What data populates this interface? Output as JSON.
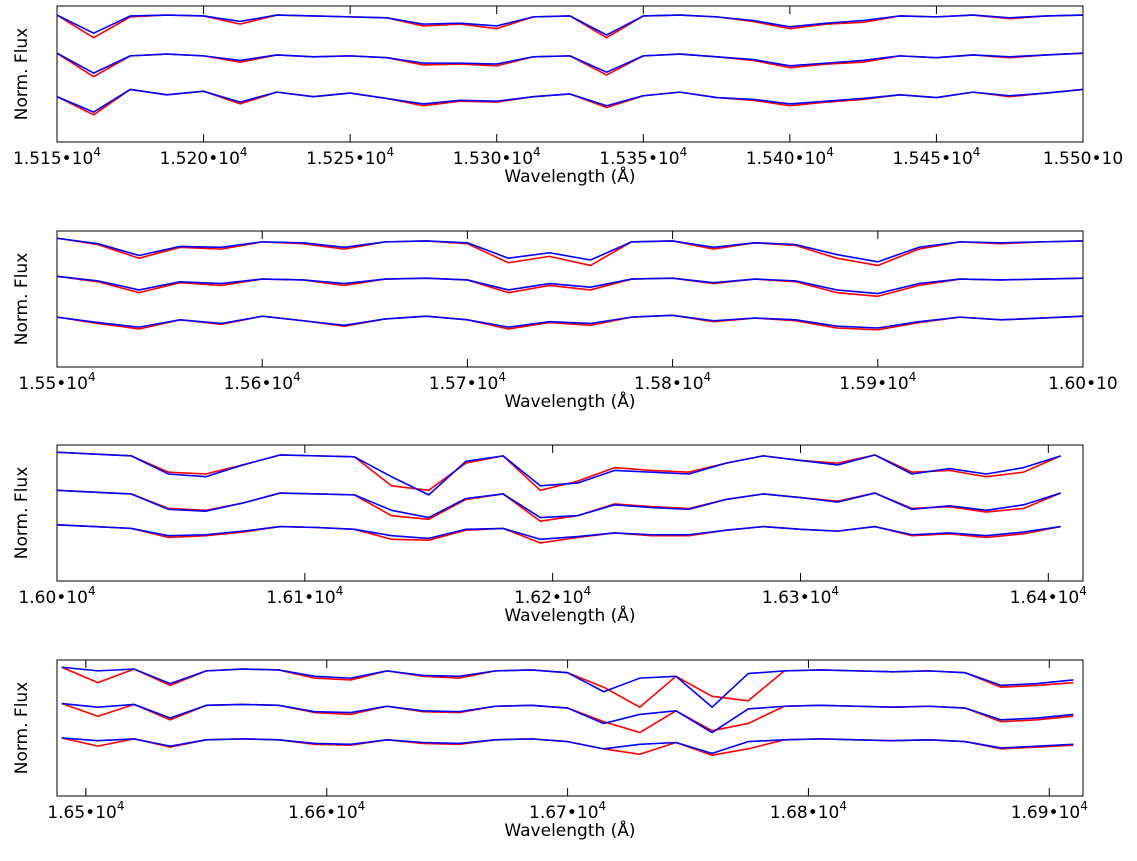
{
  "chart_data": [
    {
      "type": "line",
      "xlabel": "Wavelength (Å)",
      "ylabel": "Norm. Flux",
      "xlim": [
        15150,
        15500
      ],
      "ylim": [
        0,
        1.5
      ],
      "xticks": [
        {
          "value": 15150,
          "label": "1.515•10",
          "exponent": "4"
        },
        {
          "value": 15200,
          "label": "1.520•10",
          "exponent": "4"
        },
        {
          "value": 15250,
          "label": "1.525•10",
          "exponent": "4"
        },
        {
          "value": 15300,
          "label": "1.530•10",
          "exponent": "4"
        },
        {
          "value": 15350,
          "label": "1.535•10",
          "exponent": "4"
        },
        {
          "value": 15400,
          "label": "1.540•10",
          "exponent": "4"
        },
        {
          "value": 15450,
          "label": "1.545•10",
          "exponent": "4"
        },
        {
          "value": 15500,
          "label": "1.550•10"
        }
      ],
      "x": [
        15150,
        15162.5,
        15175,
        15187.5,
        15200,
        15212.5,
        15225,
        15237.5,
        15250,
        15262.5,
        15275,
        15287.5,
        15300,
        15312.5,
        15325,
        15337.5,
        15350,
        15362.5,
        15375,
        15387.5,
        15400,
        15412.5,
        15425,
        15437.5,
        15450,
        15462.5,
        15475,
        15487.5,
        15500
      ],
      "series": [
        {
          "color": "#ff0000",
          "values": [
            1.4,
            1.15,
            1.38,
            1.4,
            1.39,
            1.3,
            1.4,
            1.39,
            1.38,
            1.37,
            1.28,
            1.3,
            1.25,
            1.38,
            1.39,
            1.15,
            1.39,
            1.4,
            1.38,
            1.33,
            1.25,
            1.3,
            1.32,
            1.39,
            1.38,
            1.4,
            1.36,
            1.39,
            1.4
          ]
        },
        {
          "color": "#0000ff",
          "values": [
            1.4,
            1.2,
            1.39,
            1.4,
            1.39,
            1.33,
            1.4,
            1.39,
            1.38,
            1.37,
            1.3,
            1.31,
            1.28,
            1.38,
            1.39,
            1.18,
            1.39,
            1.4,
            1.38,
            1.34,
            1.27,
            1.31,
            1.34,
            1.39,
            1.38,
            1.4,
            1.37,
            1.39,
            1.4
          ]
        },
        {
          "color": "#ff0000",
          "values": [
            0.98,
            0.72,
            0.95,
            0.97,
            0.95,
            0.88,
            0.96,
            0.94,
            0.95,
            0.93,
            0.85,
            0.86,
            0.84,
            0.94,
            0.95,
            0.74,
            0.95,
            0.97,
            0.94,
            0.9,
            0.82,
            0.86,
            0.88,
            0.95,
            0.93,
            0.96,
            0.93,
            0.96,
            0.98
          ]
        },
        {
          "color": "#0000ff",
          "values": [
            0.98,
            0.76,
            0.95,
            0.97,
            0.95,
            0.9,
            0.96,
            0.94,
            0.95,
            0.93,
            0.87,
            0.87,
            0.86,
            0.94,
            0.95,
            0.77,
            0.95,
            0.97,
            0.94,
            0.91,
            0.84,
            0.87,
            0.9,
            0.95,
            0.93,
            0.96,
            0.94,
            0.96,
            0.98
          ]
        },
        {
          "color": "#ff0000",
          "values": [
            0.5,
            0.3,
            0.58,
            0.52,
            0.56,
            0.42,
            0.55,
            0.5,
            0.54,
            0.48,
            0.4,
            0.45,
            0.44,
            0.5,
            0.53,
            0.38,
            0.51,
            0.55,
            0.49,
            0.46,
            0.4,
            0.44,
            0.47,
            0.52,
            0.49,
            0.55,
            0.5,
            0.54,
            0.58
          ]
        },
        {
          "color": "#0000ff",
          "values": [
            0.5,
            0.33,
            0.58,
            0.52,
            0.56,
            0.44,
            0.55,
            0.5,
            0.54,
            0.48,
            0.42,
            0.46,
            0.45,
            0.5,
            0.53,
            0.4,
            0.51,
            0.55,
            0.49,
            0.47,
            0.42,
            0.45,
            0.48,
            0.52,
            0.49,
            0.55,
            0.51,
            0.54,
            0.58
          ]
        }
      ]
    },
    {
      "type": "line",
      "xlabel": "Wavelength (Å)",
      "ylabel": "Norm. Flux",
      "xlim": [
        15500,
        16000
      ],
      "ylim": [
        0,
        1.5
      ],
      "xticks": [
        {
          "value": 15500,
          "label": "1.55•10",
          "exponent": "4"
        },
        {
          "value": 15600,
          "label": "1.56•10",
          "exponent": "4"
        },
        {
          "value": 15700,
          "label": "1.57•10",
          "exponent": "4"
        },
        {
          "value": 15800,
          "label": "1.58•10",
          "exponent": "4"
        },
        {
          "value": 15900,
          "label": "1.59•10",
          "exponent": "4"
        },
        {
          "value": 16000,
          "label": "1.60•10"
        }
      ],
      "x": [
        15500,
        15520,
        15540,
        15560,
        15580,
        15600,
        15620,
        15640,
        15660,
        15680,
        15700,
        15720,
        15740,
        15760,
        15780,
        15800,
        15820,
        15840,
        15860,
        15880,
        15900,
        15920,
        15940,
        15960,
        15980,
        16000
      ],
      "series": [
        {
          "color": "#ff0000",
          "values": [
            1.42,
            1.35,
            1.2,
            1.32,
            1.3,
            1.38,
            1.36,
            1.3,
            1.38,
            1.39,
            1.36,
            1.15,
            1.22,
            1.12,
            1.38,
            1.39,
            1.3,
            1.37,
            1.34,
            1.2,
            1.12,
            1.3,
            1.38,
            1.36,
            1.38,
            1.39
          ]
        },
        {
          "color": "#0000ff",
          "values": [
            1.42,
            1.36,
            1.23,
            1.33,
            1.32,
            1.38,
            1.37,
            1.32,
            1.38,
            1.39,
            1.37,
            1.2,
            1.26,
            1.18,
            1.38,
            1.39,
            1.32,
            1.37,
            1.35,
            1.24,
            1.16,
            1.32,
            1.38,
            1.37,
            1.38,
            1.39
          ]
        },
        {
          "color": "#ff0000",
          "values": [
            1.0,
            0.94,
            0.82,
            0.93,
            0.9,
            0.97,
            0.96,
            0.9,
            0.97,
            0.98,
            0.96,
            0.82,
            0.9,
            0.85,
            0.97,
            0.98,
            0.92,
            0.97,
            0.94,
            0.82,
            0.78,
            0.9,
            0.97,
            0.96,
            0.97,
            0.98
          ]
        },
        {
          "color": "#0000ff",
          "values": [
            1.0,
            0.95,
            0.85,
            0.94,
            0.92,
            0.97,
            0.96,
            0.92,
            0.97,
            0.98,
            0.96,
            0.85,
            0.92,
            0.88,
            0.97,
            0.98,
            0.93,
            0.97,
            0.95,
            0.85,
            0.81,
            0.92,
            0.97,
            0.96,
            0.97,
            0.98
          ]
        },
        {
          "color": "#ff0000",
          "values": [
            0.55,
            0.48,
            0.42,
            0.52,
            0.47,
            0.56,
            0.51,
            0.45,
            0.53,
            0.56,
            0.52,
            0.42,
            0.49,
            0.46,
            0.55,
            0.57,
            0.5,
            0.54,
            0.51,
            0.43,
            0.41,
            0.49,
            0.55,
            0.52,
            0.54,
            0.56
          ]
        },
        {
          "color": "#0000ff",
          "values": [
            0.55,
            0.49,
            0.44,
            0.52,
            0.48,
            0.56,
            0.51,
            0.46,
            0.53,
            0.56,
            0.52,
            0.44,
            0.5,
            0.48,
            0.55,
            0.57,
            0.51,
            0.54,
            0.52,
            0.45,
            0.43,
            0.5,
            0.55,
            0.52,
            0.54,
            0.56
          ]
        }
      ]
    },
    {
      "type": "line",
      "xlabel": "Wavelength (Å)",
      "ylabel": "Norm. Flux",
      "xlim": [
        16000,
        16414
      ],
      "ylim": [
        0,
        1.5
      ],
      "xticks": [
        {
          "value": 16000,
          "label": "1.60•10",
          "exponent": "4"
        },
        {
          "value": 16100,
          "label": "1.61•10",
          "exponent": "4"
        },
        {
          "value": 16200,
          "label": "1.62•10",
          "exponent": "4"
        },
        {
          "value": 16300,
          "label": "1.63•10",
          "exponent": "4"
        },
        {
          "value": 16400,
          "label": "1.64•10",
          "exponent": "4"
        }
      ],
      "x": [
        16000,
        16015,
        16030,
        16045,
        16060,
        16075,
        16090,
        16105,
        16120,
        16135,
        16150,
        16165,
        16180,
        16195,
        16210,
        16225,
        16240,
        16255,
        16270,
        16285,
        16300,
        16315,
        16330,
        16345,
        16360,
        16375,
        16390,
        16405
      ],
      "series": [
        {
          "color": "#ff0000",
          "values": [
            1.42,
            1.4,
            1.38,
            1.2,
            1.18,
            1.28,
            1.39,
            1.38,
            1.37,
            1.05,
            1.0,
            1.3,
            1.38,
            1.0,
            1.1,
            1.25,
            1.22,
            1.2,
            1.3,
            1.38,
            1.33,
            1.3,
            1.39,
            1.2,
            1.22,
            1.15,
            1.2,
            1.38
          ]
        },
        {
          "color": "#0000ff",
          "values": [
            1.42,
            1.4,
            1.38,
            1.18,
            1.15,
            1.28,
            1.39,
            1.38,
            1.37,
            1.15,
            0.95,
            1.32,
            1.38,
            1.05,
            1.08,
            1.22,
            1.2,
            1.18,
            1.3,
            1.38,
            1.33,
            1.28,
            1.39,
            1.18,
            1.24,
            1.18,
            1.25,
            1.38
          ]
        },
        {
          "color": "#ff0000",
          "values": [
            1.0,
            0.98,
            0.96,
            0.8,
            0.78,
            0.86,
            0.97,
            0.96,
            0.95,
            0.72,
            0.68,
            0.9,
            0.96,
            0.66,
            0.72,
            0.85,
            0.82,
            0.8,
            0.9,
            0.96,
            0.92,
            0.88,
            0.97,
            0.8,
            0.82,
            0.76,
            0.8,
            0.97
          ]
        },
        {
          "color": "#0000ff",
          "values": [
            1.0,
            0.98,
            0.96,
            0.79,
            0.77,
            0.86,
            0.97,
            0.96,
            0.95,
            0.78,
            0.7,
            0.91,
            0.96,
            0.7,
            0.72,
            0.84,
            0.81,
            0.79,
            0.9,
            0.96,
            0.92,
            0.87,
            0.97,
            0.79,
            0.83,
            0.78,
            0.84,
            0.97
          ]
        },
        {
          "color": "#ff0000",
          "values": [
            0.62,
            0.6,
            0.58,
            0.48,
            0.5,
            0.54,
            0.6,
            0.59,
            0.57,
            0.46,
            0.45,
            0.56,
            0.58,
            0.42,
            0.48,
            0.53,
            0.5,
            0.5,
            0.56,
            0.6,
            0.57,
            0.55,
            0.6,
            0.5,
            0.52,
            0.48,
            0.52,
            0.6
          ]
        },
        {
          "color": "#0000ff",
          "values": [
            0.62,
            0.6,
            0.58,
            0.5,
            0.51,
            0.55,
            0.6,
            0.59,
            0.57,
            0.5,
            0.47,
            0.57,
            0.58,
            0.46,
            0.49,
            0.53,
            0.51,
            0.51,
            0.56,
            0.6,
            0.57,
            0.55,
            0.6,
            0.51,
            0.53,
            0.5,
            0.54,
            0.6
          ]
        }
      ]
    },
    {
      "type": "line",
      "xlabel": "Wavelength (Å)",
      "ylabel": "Norm. Flux",
      "xlim": [
        16488,
        16914
      ],
      "ylim": [
        0,
        1.5
      ],
      "xticks": [
        {
          "value": 16500,
          "label": "1.65•10",
          "exponent": "4"
        },
        {
          "value": 16600,
          "label": "1.66•10",
          "exponent": "4"
        },
        {
          "value": 16700,
          "label": "1.67•10",
          "exponent": "4"
        },
        {
          "value": 16800,
          "label": "1.68•10",
          "exponent": "4"
        },
        {
          "value": 16900,
          "label": "1.69•10",
          "exponent": "4"
        }
      ],
      "x": [
        16490,
        16505,
        16520,
        16535,
        16550,
        16565,
        16580,
        16595,
        16610,
        16625,
        16640,
        16655,
        16670,
        16685,
        16700,
        16715,
        16730,
        16745,
        16760,
        16775,
        16790,
        16805,
        16820,
        16835,
        16850,
        16865,
        16880,
        16895,
        16910
      ],
      "series": [
        {
          "color": "#ff0000",
          "values": [
            1.42,
            1.25,
            1.4,
            1.22,
            1.38,
            1.4,
            1.39,
            1.3,
            1.28,
            1.38,
            1.32,
            1.3,
            1.38,
            1.39,
            1.36,
            1.2,
            0.98,
            1.32,
            1.1,
            1.05,
            1.38,
            1.39,
            1.38,
            1.37,
            1.38,
            1.36,
            1.2,
            1.22,
            1.25
          ]
        },
        {
          "color": "#0000ff",
          "values": [
            1.42,
            1.38,
            1.4,
            1.24,
            1.38,
            1.4,
            1.39,
            1.32,
            1.3,
            1.38,
            1.33,
            1.32,
            1.38,
            1.39,
            1.36,
            1.15,
            1.3,
            1.32,
            0.98,
            1.35,
            1.38,
            1.39,
            1.38,
            1.37,
            1.38,
            1.36,
            1.22,
            1.24,
            1.28
          ]
        },
        {
          "color": "#ff0000",
          "values": [
            1.02,
            0.88,
            1.01,
            0.84,
            1.0,
            1.01,
            1.0,
            0.92,
            0.9,
            0.99,
            0.93,
            0.92,
            0.99,
            1.0,
            0.97,
            0.82,
            0.7,
            0.94,
            0.72,
            0.8,
            0.99,
            1.0,
            0.99,
            0.98,
            0.99,
            0.97,
            0.82,
            0.84,
            0.88
          ]
        },
        {
          "color": "#0000ff",
          "values": [
            1.02,
            0.98,
            1.01,
            0.86,
            1.0,
            1.01,
            1.0,
            0.93,
            0.92,
            0.99,
            0.94,
            0.93,
            0.99,
            1.0,
            0.97,
            0.8,
            0.9,
            0.94,
            0.7,
            0.96,
            0.99,
            1.0,
            0.99,
            0.98,
            0.99,
            0.97,
            0.84,
            0.86,
            0.9
          ]
        },
        {
          "color": "#ff0000",
          "values": [
            0.64,
            0.55,
            0.63,
            0.54,
            0.62,
            0.63,
            0.62,
            0.57,
            0.56,
            0.62,
            0.58,
            0.57,
            0.62,
            0.63,
            0.6,
            0.52,
            0.46,
            0.59,
            0.45,
            0.52,
            0.62,
            0.63,
            0.62,
            0.61,
            0.62,
            0.6,
            0.52,
            0.54,
            0.56
          ]
        },
        {
          "color": "#0000ff",
          "values": [
            0.64,
            0.61,
            0.63,
            0.55,
            0.62,
            0.63,
            0.62,
            0.58,
            0.57,
            0.62,
            0.59,
            0.58,
            0.62,
            0.63,
            0.6,
            0.52,
            0.57,
            0.59,
            0.47,
            0.6,
            0.62,
            0.63,
            0.62,
            0.61,
            0.62,
            0.6,
            0.53,
            0.55,
            0.57
          ]
        }
      ]
    }
  ]
}
